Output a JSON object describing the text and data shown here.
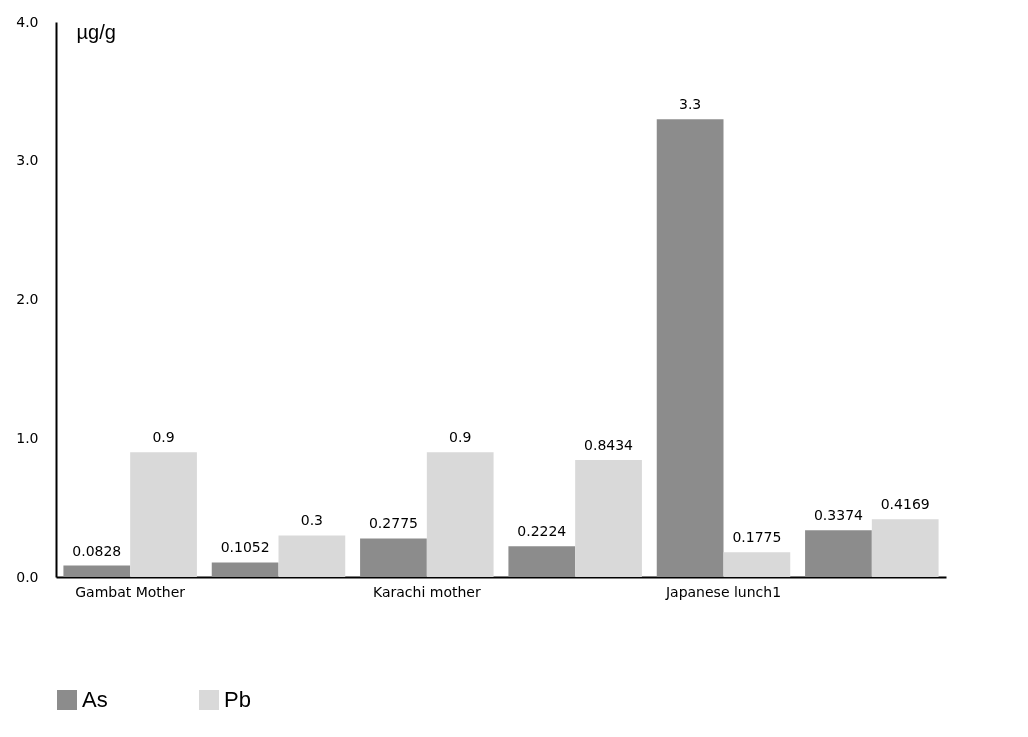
{
  "chart_data": {
    "type": "bar",
    "ylabel": "µg/g",
    "categories": [
      "Gambat Mother",
      null,
      "Karachi mother",
      null,
      "Japanese lunch1",
      null
    ],
    "series": [
      {
        "name": "As",
        "color": "#8c8c8c",
        "values": [
          0.0828,
          0.1052,
          0.2775,
          0.2224,
          3.3,
          0.3374
        ]
      },
      {
        "name": "Pb",
        "color": "#d9d9d9",
        "values": [
          0.9,
          0.3,
          0.9,
          0.8434,
          0.1775,
          0.4169
        ]
      }
    ],
    "ylim": [
      0,
      4
    ],
    "yticks": [
      {
        "value": 0,
        "label": "0.0"
      },
      {
        "value": 1,
        "label": "1.0"
      },
      {
        "value": 2,
        "label": "2.0"
      },
      {
        "value": 3,
        "label": "3.0"
      },
      {
        "value": 4,
        "label": "4.0"
      }
    ],
    "grid": false,
    "legend": "bottom",
    "data_labels": true
  }
}
